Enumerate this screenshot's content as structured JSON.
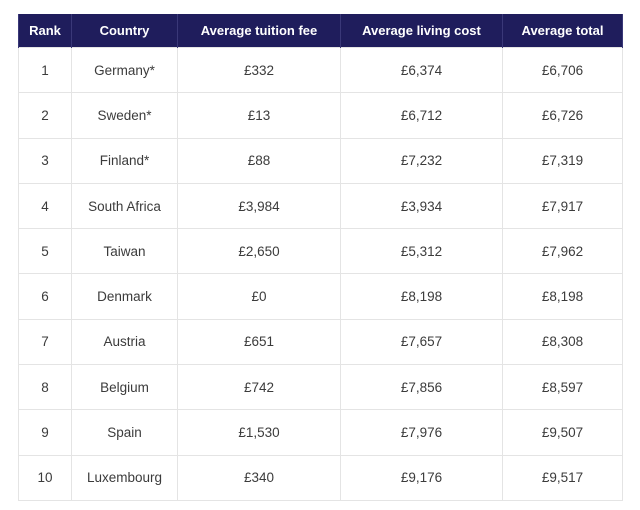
{
  "table": {
    "headers": [
      "Rank",
      "Country",
      "Average tuition fee",
      "Average living cost",
      "Average total"
    ],
    "rows": [
      [
        "1",
        "Germany*",
        "£332",
        "£6,374",
        "£6,706"
      ],
      [
        "2",
        "Sweden*",
        "£13",
        "£6,712",
        "£6,726"
      ],
      [
        "3",
        "Finland*",
        "£88",
        "£7,232",
        "£7,319"
      ],
      [
        "4",
        "South Africa",
        "£3,984",
        "£3,934",
        "£7,917"
      ],
      [
        "5",
        "Taiwan",
        "£2,650",
        "£5,312",
        "£7,962"
      ],
      [
        "6",
        "Denmark",
        "£0",
        "£8,198",
        "£8,198"
      ],
      [
        "7",
        "Austria",
        "£651",
        "£7,657",
        "£8,308"
      ],
      [
        "8",
        "Belgium",
        "£742",
        "£7,856",
        "£8,597"
      ],
      [
        "9",
        "Spain",
        "£1,530",
        "£7,976",
        "£9,507"
      ],
      [
        "10",
        "Luxembourg",
        "£340",
        "£9,176",
        "£9,517"
      ]
    ]
  },
  "colors": {
    "header_background": "#1f1d5c",
    "header_text": "#ffffff",
    "cell_text": "#3b3b3b",
    "grid_line": "#e4e4e4"
  }
}
